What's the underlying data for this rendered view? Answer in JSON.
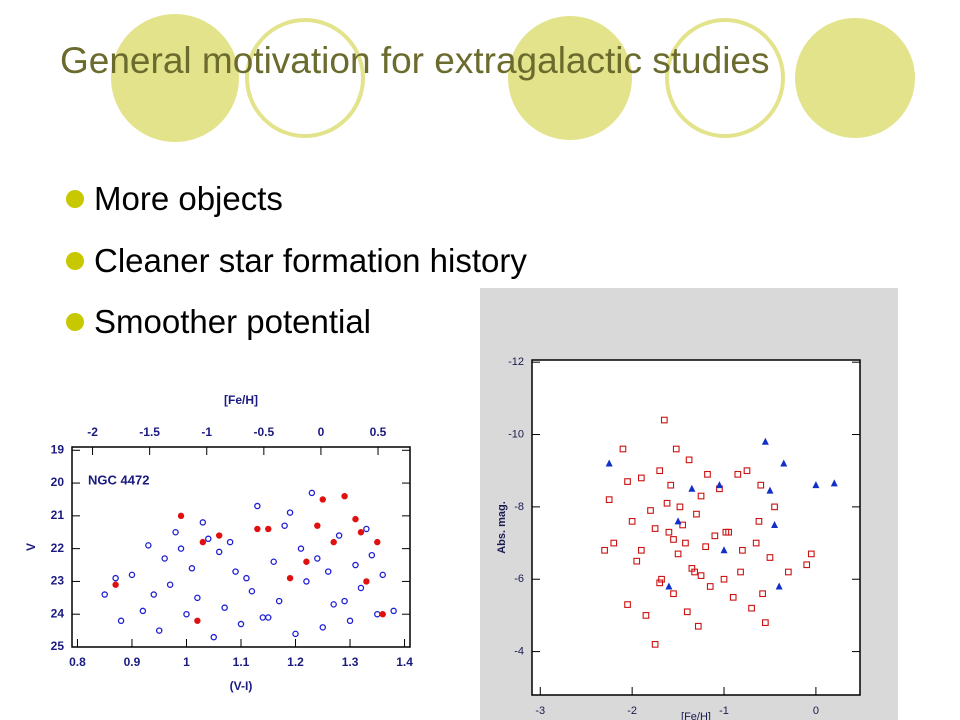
{
  "slide": {
    "title": "General motivation for extragalactic studies",
    "bullets": [
      "More objects",
      "Cleaner star formation history",
      "Smoother potential"
    ]
  },
  "chart_data": [
    {
      "type": "scatter",
      "annotation": "NGC 4472",
      "xlabel": "(V-I)",
      "ylabel": "V",
      "x2label": "[Fe/H]",
      "xlim": [
        0.79,
        1.41
      ],
      "xticks": [
        0.8,
        0.9,
        1,
        1.1,
        1.2,
        1.3,
        1.4
      ],
      "ylim": [
        25.0,
        18.9
      ],
      "yticks": [
        19,
        20,
        21,
        22,
        23,
        24,
        25
      ],
      "x2lim": [
        -2.18,
        0.78
      ],
      "x2ticks": [
        -2,
        -1.5,
        -1,
        -0.5,
        0,
        0.5
      ],
      "series": [
        {
          "color": "#1f1fd6",
          "marker": "circle",
          "x": [
            0.85,
            0.88,
            0.9,
            0.92,
            0.93,
            0.95,
            0.96,
            0.97,
            0.98,
            1.0,
            1.01,
            1.02,
            1.03,
            1.05,
            1.06,
            1.07,
            1.08,
            1.1,
            1.11,
            1.12,
            1.13,
            1.15,
            1.16,
            1.17,
            1.18,
            1.2,
            1.21,
            1.22,
            1.23,
            1.25,
            1.26,
            1.27,
            1.28,
            1.3,
            1.31,
            1.32,
            1.33,
            1.35,
            1.36,
            1.38,
            0.87,
            0.94,
            0.99,
            1.04,
            1.09,
            1.14,
            1.19,
            1.24,
            1.29,
            1.34
          ],
          "y": [
            23.4,
            24.2,
            22.8,
            23.9,
            21.9,
            24.5,
            22.3,
            23.1,
            21.5,
            24.0,
            22.6,
            23.5,
            21.2,
            24.7,
            22.1,
            23.8,
            21.8,
            24.3,
            22.9,
            23.3,
            20.7,
            24.1,
            22.4,
            23.6,
            21.3,
            24.6,
            22.0,
            23.0,
            20.3,
            24.4,
            22.7,
            23.7,
            21.6,
            24.2,
            22.5,
            23.2,
            21.4,
            24.0,
            22.8,
            23.9,
            22.9,
            23.4,
            22.0,
            21.7,
            22.7,
            24.1,
            20.9,
            22.3,
            23.6,
            22.2
          ]
        },
        {
          "color": "#e01010",
          "marker": "dot",
          "x": [
            0.87,
            0.99,
            1.03,
            1.06,
            1.13,
            1.15,
            1.19,
            1.24,
            1.25,
            1.27,
            1.29,
            1.31,
            1.32,
            1.33,
            1.36,
            1.02,
            1.22,
            1.35
          ],
          "y": [
            23.1,
            21.0,
            21.8,
            21.6,
            21.4,
            21.4,
            22.9,
            21.3,
            20.5,
            21.8,
            20.4,
            21.1,
            21.5,
            23.0,
            24.0,
            24.2,
            22.4,
            21.8
          ]
        }
      ]
    },
    {
      "type": "scatter",
      "xlabel": "[Fe/H]",
      "ylabel": "Abs. mag.",
      "xlim": [
        -3.09,
        0.48
      ],
      "xticks": [
        -3,
        -2,
        -1,
        0
      ],
      "ylim": [
        -2.8,
        -12.06
      ],
      "yticks": [
        -12,
        -10,
        -8,
        -6,
        -4
      ],
      "series": [
        {
          "color": "#cc1111",
          "marker": "square",
          "x": [
            -2.3,
            -2.25,
            -2.2,
            -2.1,
            -2.05,
            -2.0,
            -1.95,
            -1.9,
            -1.85,
            -1.8,
            -1.75,
            -1.7,
            -1.68,
            -1.65,
            -1.6,
            -1.58,
            -1.55,
            -1.5,
            -1.48,
            -1.45,
            -1.4,
            -1.38,
            -1.35,
            -1.3,
            -1.28,
            -1.25,
            -1.2,
            -1.15,
            -1.1,
            -1.05,
            -1.0,
            -0.95,
            -0.9,
            -0.85,
            -0.8,
            -0.75,
            -0.7,
            -0.65,
            -0.6,
            -0.55,
            -0.5,
            -0.45,
            -0.3,
            -0.1,
            -0.05,
            -2.05,
            -1.9,
            -1.75,
            -1.62,
            -1.52,
            -1.42,
            -1.32,
            -1.18,
            -0.98,
            -0.62,
            -0.58,
            -1.7,
            -1.55,
            -1.25,
            -0.82
          ],
          "y": [
            -6.8,
            -8.2,
            -7.0,
            -9.6,
            -5.3,
            -7.6,
            -6.5,
            -8.8,
            -5.0,
            -7.9,
            -4.2,
            -9.0,
            -6.0,
            -10.4,
            -7.3,
            -8.6,
            -5.6,
            -6.7,
            -8.0,
            -7.5,
            -5.1,
            -9.3,
            -6.3,
            -7.8,
            -4.7,
            -8.3,
            -6.9,
            -5.8,
            -7.2,
            -8.5,
            -6.0,
            -7.3,
            -5.5,
            -8.9,
            -6.8,
            -9.0,
            -5.2,
            -7.0,
            -8.6,
            -4.8,
            -6.6,
            -8.0,
            -6.2,
            -6.4,
            -6.7,
            -8.7,
            -6.8,
            -7.4,
            -8.1,
            -9.6,
            -7.0,
            -6.2,
            -8.9,
            -7.3,
            -7.6,
            -5.6,
            -5.9,
            -7.1,
            -6.1,
            -6.2
          ]
        },
        {
          "color": "#1030c8",
          "marker": "triangle",
          "x": [
            -2.25,
            -1.35,
            -1.05,
            -0.55,
            -0.35,
            0,
            0.2,
            -0.5,
            -0.45,
            -1.0,
            -1.6,
            -0.4,
            -1.5
          ],
          "y": [
            -9.2,
            -8.5,
            -8.6,
            -9.8,
            -9.2,
            -8.6,
            -8.65,
            -8.45,
            -7.5,
            -6.8,
            -5.8,
            -5.8,
            -7.6
          ]
        }
      ]
    }
  ]
}
